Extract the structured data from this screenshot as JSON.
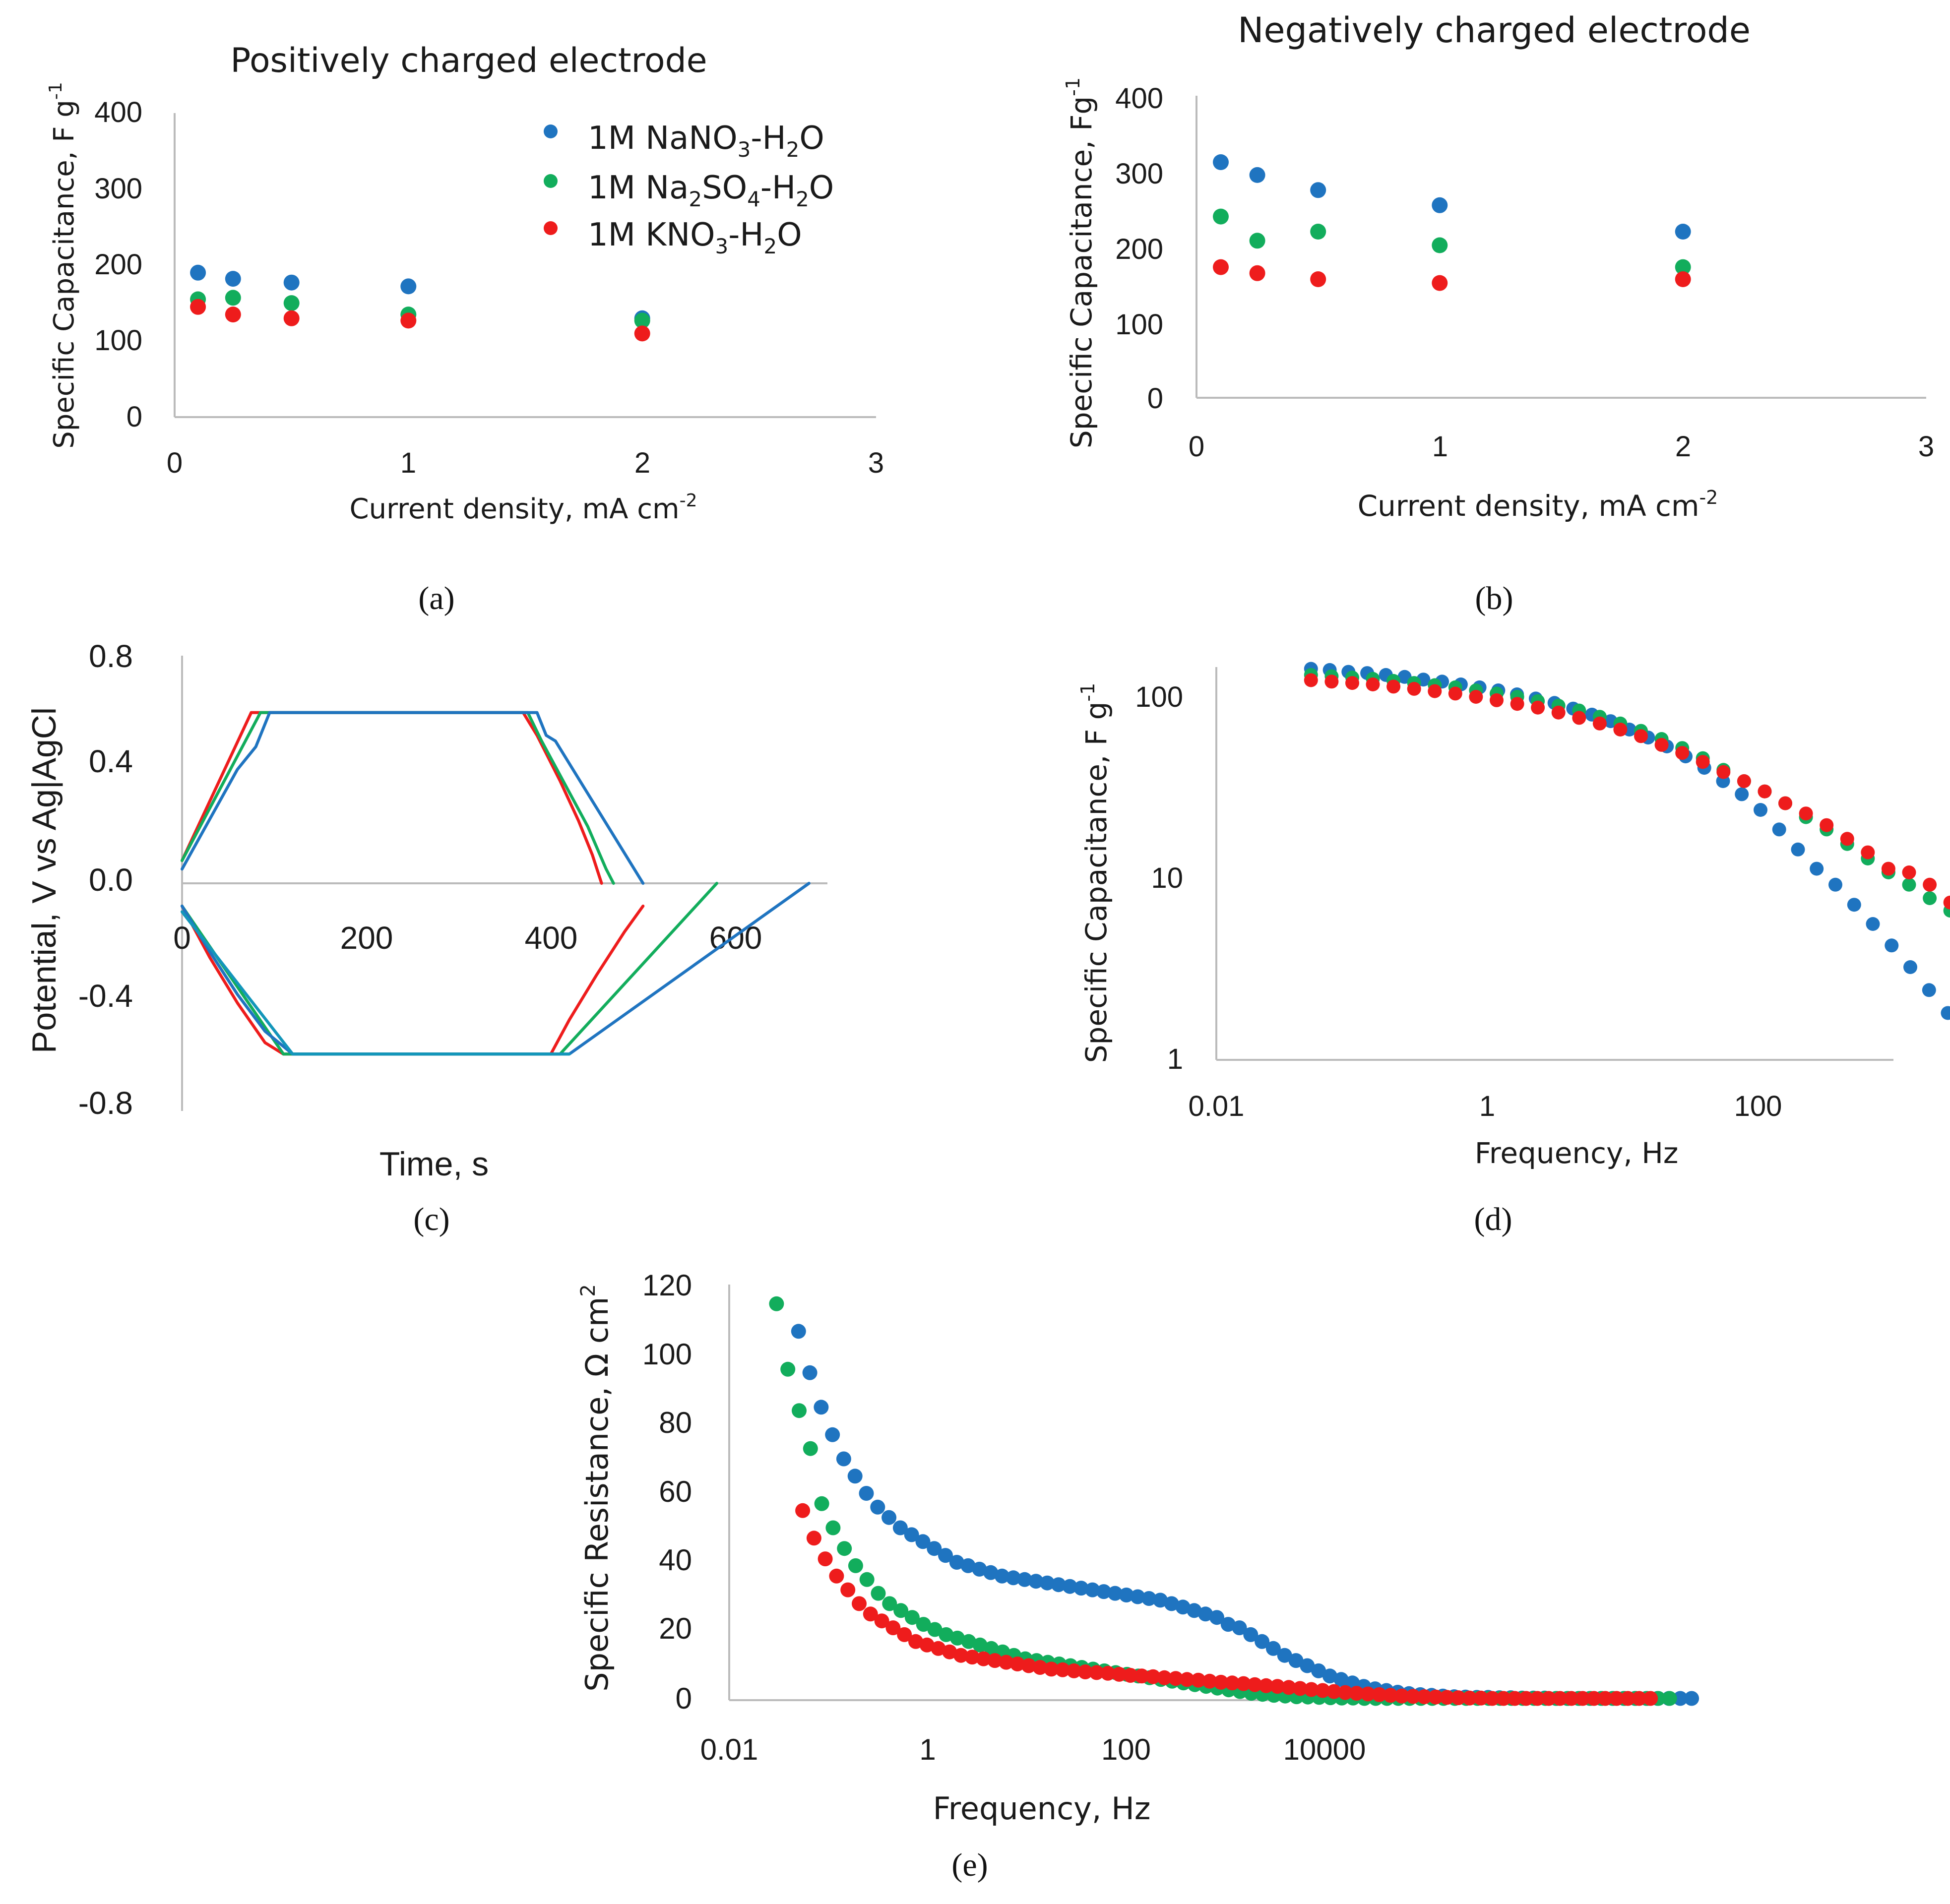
{
  "colors": {
    "blue": "#1f74c0",
    "green": "#12ad5c",
    "red": "#ee1c1c",
    "teal": "#1396ba",
    "axis": "#bbbbbb"
  },
  "chart_data": [
    {
      "id": "a",
      "type": "scatter",
      "caption": "(a)",
      "title": "Positively charged electrode",
      "ylabel": "Specific Capacitance, F g",
      "ylabel_sup": "-1",
      "xlabel": "Current density, mA cm",
      "xlabel_sup": "-2",
      "xlim": [
        0,
        3
      ],
      "ylim": [
        0,
        400
      ],
      "xticks": [
        "0",
        "1",
        "2",
        "3"
      ],
      "yticks": [
        "0",
        "100",
        "200",
        "300",
        "400"
      ],
      "legend": [
        {
          "pre": "1M NaNO",
          "s1": "3",
          "mid": "-H",
          "s2": "2",
          "post": "O",
          "color": "blue"
        },
        {
          "pre": "1M Na",
          "s1": "2",
          "mid": "SO",
          "s2": "4",
          "post": "-H",
          "s3": "2",
          "post2": "O",
          "color": "green"
        },
        {
          "pre": "1M KNO",
          "s1": "3",
          "mid": "-H",
          "s2": "2",
          "post": "O",
          "color": "red"
        }
      ],
      "series": [
        {
          "name": "1M NaNO3-H2O",
          "color": "blue",
          "x": [
            0.1,
            0.25,
            0.5,
            1,
            2
          ],
          "y": [
            190,
            182,
            177,
            172,
            130
          ]
        },
        {
          "name": "1M Na2SO4-H2O",
          "color": "green",
          "x": [
            0.1,
            0.25,
            0.5,
            1,
            2
          ],
          "y": [
            155,
            157,
            150,
            135,
            127
          ]
        },
        {
          "name": "1M KNO3-H2O",
          "color": "red",
          "x": [
            0.1,
            0.25,
            0.5,
            1,
            2
          ],
          "y": [
            145,
            135,
            130,
            127,
            110
          ]
        }
      ]
    },
    {
      "id": "b",
      "type": "scatter",
      "caption": "(b)",
      "title": "Negatively charged electrode",
      "ylabel": "Specific Capacitance, Fg",
      "ylabel_sup": "-1",
      "xlabel": "Current density, mA cm",
      "xlabel_sup": "-2",
      "xlim": [
        0,
        3
      ],
      "ylim": [
        0,
        400
      ],
      "xticks": [
        "0",
        "1",
        "2",
        "3"
      ],
      "yticks": [
        "0",
        "100",
        "200",
        "300",
        "400"
      ],
      "series": [
        {
          "name": "1M NaNO3-H2O",
          "color": "blue",
          "x": [
            0.1,
            0.25,
            0.5,
            1,
            2
          ],
          "y": [
            312,
            295,
            275,
            255,
            220
          ]
        },
        {
          "name": "1M Na2SO4-H2O",
          "color": "green",
          "x": [
            0.1,
            0.25,
            0.5,
            1,
            2
          ],
          "y": [
            240,
            208,
            220,
            202,
            173
          ]
        },
        {
          "name": "1M KNO3-H2O",
          "color": "red",
          "x": [
            0.1,
            0.25,
            0.5,
            1,
            2
          ],
          "y": [
            173,
            165,
            157,
            152,
            157
          ]
        }
      ]
    },
    {
      "id": "c",
      "type": "line",
      "caption": "(c)",
      "ylabel": "Potential, V vs Ag|AgCl",
      "xlabel": "Time, s",
      "xlim": [
        0,
        700
      ],
      "ylim": [
        -0.8,
        0.8
      ],
      "xticks": [
        "0",
        "200",
        "400",
        "600"
      ],
      "yticks": [
        "-0.8",
        "-0.4",
        "0.0",
        "0.4",
        "0.8"
      ],
      "series": [
        {
          "name": "positive, 1M KNO3-H2O",
          "color": "red",
          "x": [
            0,
            75,
            370,
            385,
            410,
            430,
            445,
            455
          ],
          "y": [
            0.08,
            0.6,
            0.6,
            0.52,
            0.36,
            0.22,
            0.1,
            0
          ]
        },
        {
          "name": "positive, 1M Na2SO4-H2O",
          "color": "green",
          "x": [
            0,
            85,
            375,
            390,
            415,
            440,
            460,
            468
          ],
          "y": [
            0.08,
            0.6,
            0.6,
            0.5,
            0.35,
            0.2,
            0.05,
            0
          ]
        },
        {
          "name": "positive, 1M NaNO3-H2O",
          "color": "blue",
          "x": [
            0,
            60,
            80,
            95,
            385,
            395,
            405,
            500
          ],
          "y": [
            0.05,
            0.4,
            0.48,
            0.6,
            0.6,
            0.52,
            0.5,
            0
          ]
        },
        {
          "name": "negative, 1M KNO3-H2O",
          "color": "red",
          "x": [
            0,
            30,
            60,
            90,
            110,
            400,
            420,
            450,
            480,
            500
          ],
          "y": [
            -0.08,
            -0.26,
            -0.42,
            -0.56,
            -0.6,
            -0.6,
            -0.48,
            -0.32,
            -0.17,
            -0.08
          ]
        },
        {
          "name": "negative, 1M Na2SO4-H2O",
          "color": "green",
          "x": [
            0,
            110,
            410,
            580
          ],
          "y": [
            -0.08,
            -0.6,
            -0.6,
            0
          ]
        },
        {
          "name": "negative, 1M NaNO3-H2O",
          "color": "blue",
          "x": [
            0,
            30,
            60,
            90,
            120,
            420,
            680
          ],
          "y": [
            -0.08,
            -0.24,
            -0.39,
            -0.52,
            -0.6,
            -0.6,
            0
          ]
        },
        {
          "name": "negative, baseline",
          "color": "teal",
          "x": [
            0,
            120,
            420
          ],
          "y": [
            -0.1,
            -0.6,
            -0.6
          ]
        }
      ]
    },
    {
      "id": "d",
      "type": "scatter",
      "caption": "(d)",
      "ylabel": "Specific Capacitance, F g",
      "ylabel_sup": "-1",
      "xlabel": "Frequency, Hz",
      "xscale": "log",
      "yscale": "log",
      "xlim": [
        0.01,
        1000
      ],
      "ylim": [
        1,
        150
      ],
      "xticks": [
        "0.01",
        "1",
        "100"
      ],
      "yticks": [
        "1",
        "10",
        "100"
      ],
      "series": [
        {
          "name": "1M NaNO3-H2O",
          "color": "blue",
          "pattern": {
            "f0": 0.05,
            "ratio": 1.375,
            "n": 38
          },
          "y": [
            135,
            133,
            130,
            128,
            125,
            122,
            118,
            115,
            111,
            107,
            103,
            98,
            93,
            88,
            82,
            76,
            70,
            63,
            57,
            51,
            45,
            39,
            33,
            28,
            23,
            18,
            14,
            11,
            9,
            7,
            5.5,
            4.2,
            3.2,
            2.4,
            1.8,
            1.4,
            1.2,
            1.1
          ]
        },
        {
          "name": "1M Na2SO4-H2O",
          "color": "green",
          "pattern": {
            "f0": 0.05,
            "ratio": 1.42,
            "n": 42
          },
          "y": [
            125,
            123,
            121,
            119,
            116,
            113,
            110,
            107,
            103,
            99,
            95,
            90,
            85,
            80,
            74,
            68,
            62,
            56,
            50,
            44,
            38,
            33,
            29,
            25,
            21,
            18,
            15,
            12.5,
            10.5,
            9,
            7.6,
            6.5,
            5.6,
            4.9,
            4.3,
            3.8,
            3.4,
            3.1,
            2.8,
            2.5,
            2.2,
            2
          ]
        },
        {
          "name": "1M KNO3-H2O",
          "color": "red",
          "pattern": {
            "f0": 0.05,
            "ratio": 1.42,
            "n": 42
          },
          "y": [
            117,
            115,
            113,
            111,
            108,
            105,
            102,
            99,
            95,
            91,
            87,
            83,
            78,
            73,
            68,
            63,
            58,
            52,
            47,
            42,
            37,
            33,
            29,
            25,
            22,
            19,
            16,
            13.5,
            11,
            10.5,
            9,
            7.2,
            5.8,
            4.7,
            3.8,
            3.1,
            2.5,
            2,
            1.7,
            1.4,
            1.2,
            1.1
          ]
        }
      ]
    },
    {
      "id": "e",
      "type": "scatter",
      "caption": "(e)",
      "ylabel": "Specific Resistance, Ω cm",
      "ylabel_sup": "2",
      "xlabel": "Frequency, Hz",
      "xscale": "log",
      "xlim": [
        0.01,
        100000
      ],
      "ylim": [
        0,
        120
      ],
      "xticks": [
        "0.01",
        "1",
        "100",
        "10000"
      ],
      "yticks": [
        "0",
        "20",
        "40",
        "60",
        "80",
        "100",
        "120"
      ],
      "series": [
        {
          "name": "1M NaNO3-H2O",
          "color": "blue",
          "pattern": {
            "f0": 0.05,
            "ratio": 1.3,
            "n": 80
          },
          "y": [
            107,
            95,
            85,
            77,
            70,
            65,
            60,
            56,
            53,
            50,
            48,
            46,
            44,
            42,
            40,
            39,
            38,
            37,
            36,
            35.5,
            35,
            34.5,
            34,
            33.5,
            33,
            32.5,
            32,
            31.5,
            31,
            30.5,
            30,
            29.5,
            29,
            28,
            27,
            26,
            25,
            24,
            22,
            21,
            19,
            17,
            15,
            13,
            11.5,
            10,
            8.5,
            7,
            6,
            5,
            4,
            3.3,
            2.8,
            2.3,
            1.9,
            1.6,
            1.4,
            1.2,
            1,
            0.9,
            0.8,
            0.8,
            0.7,
            0.7,
            0.6,
            0.6,
            0.6,
            0.5,
            0.5,
            0.5,
            0.5,
            0.5,
            0.5,
            0.5,
            0.5,
            0.5,
            0.5,
            0.5,
            0.5,
            0.5
          ]
        },
        {
          "name": "1M Na2SO4-H2O",
          "color": "green",
          "pattern": {
            "f0": 0.03,
            "ratio": 1.3,
            "n": 80
          },
          "y": [
            115,
            96,
            84,
            73,
            57,
            50,
            44,
            39,
            35,
            31,
            28,
            26,
            24,
            22,
            20.5,
            19,
            18,
            17,
            16,
            15,
            14,
            13,
            12,
            11.5,
            11,
            10.5,
            10,
            9.5,
            9,
            8.5,
            8,
            7.5,
            7,
            6.5,
            6,
            5.5,
            5,
            4.5,
            4,
            3.5,
            3,
            2.5,
            2,
            1.7,
            1.4,
            1.2,
            1,
            0.9,
            0.8,
            0.7,
            0.6,
            0.6,
            0.5,
            0.5,
            0.5,
            0.5,
            0.5,
            0.5,
            0.5,
            0.5,
            0.5,
            0.5,
            0.5,
            0.5,
            0.5,
            0.5,
            0.5,
            0.5,
            0.5,
            0.5,
            0.5,
            0.5,
            0.5,
            0.5,
            0.5,
            0.5,
            0.5,
            0.5,
            0.5,
            0.5
          ]
        },
        {
          "name": "1M KNO3-H2O",
          "color": "red",
          "pattern": {
            "f0": 0.055,
            "ratio": 1.3,
            "n": 76
          },
          "y": [
            55,
            47,
            41,
            36,
            32,
            28,
            25,
            23,
            21,
            19,
            17,
            16,
            15,
            14,
            13,
            12.5,
            12,
            11.5,
            11,
            10.5,
            10,
            9.5,
            9,
            8.8,
            8.5,
            8.2,
            8,
            7.8,
            7.5,
            7.2,
            7,
            6.8,
            6.5,
            6.3,
            6,
            5.8,
            5.5,
            5.2,
            5,
            4.8,
            4.5,
            4.2,
            4,
            3.7,
            3.4,
            3.1,
            2.8,
            2.5,
            2.2,
            2,
            1.8,
            1.6,
            1.4,
            1.2,
            1.1,
            1,
            0.9,
            0.8,
            0.7,
            0.6,
            0.6,
            0.5,
            0.5,
            0.5,
            0.5,
            0.5,
            0.5,
            0.5,
            0.5,
            0.5,
            0.5,
            0.5,
            0.5,
            0.5,
            0.5,
            0.5
          ]
        }
      ]
    }
  ]
}
